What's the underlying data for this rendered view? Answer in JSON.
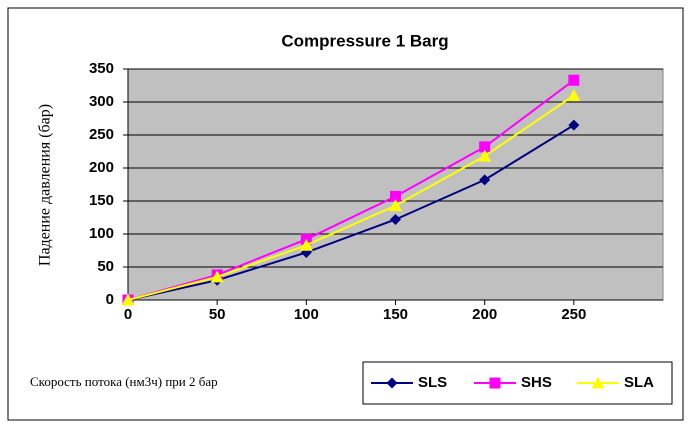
{
  "chart_data": {
    "type": "line",
    "title": "Compressure 1 Barg",
    "ylabel": "Падение давления (бар)",
    "xlabel": "Скорость потока (нм3ч) при 2 бар",
    "x": [
      0,
      50,
      100,
      150,
      200,
      250
    ],
    "series": [
      {
        "name": "SLS",
        "color": "#000080",
        "marker": "diamond",
        "values": [
          0,
          30,
          72,
          122,
          182,
          265
        ]
      },
      {
        "name": "SHS",
        "color": "#ff00ff",
        "marker": "square",
        "values": [
          0,
          38,
          92,
          157,
          232,
          333
        ]
      },
      {
        "name": "SLA",
        "color": "#ffff00",
        "marker": "triangle",
        "values": [
          0,
          35,
          83,
          143,
          218,
          310
        ]
      }
    ],
    "xlim": [
      0,
      300
    ],
    "xticks": [
      0,
      50,
      100,
      150,
      200,
      250
    ],
    "ylim": [
      0,
      350
    ],
    "yticks": [
      0,
      50,
      100,
      150,
      200,
      250,
      300,
      350
    ],
    "grid": true,
    "legend": "bottom-right",
    "plot_background": "#c0c0c0"
  }
}
